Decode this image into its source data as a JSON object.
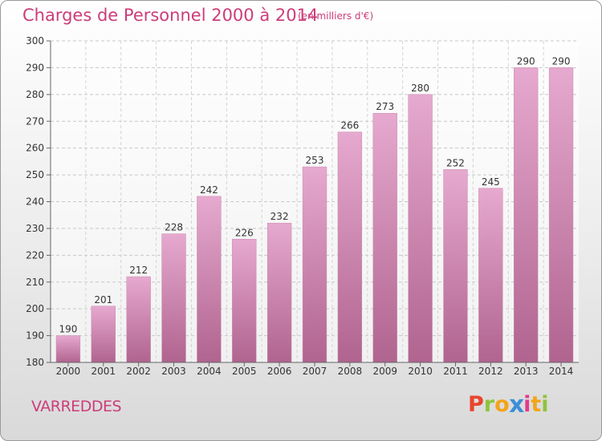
{
  "header": {
    "title": "Charges de Personnel 2000 à 2014",
    "subtitle": "(en milliers d'€)"
  },
  "footer": {
    "place": "VARREDDES",
    "logo_letters": [
      "P",
      "r",
      "o",
      "x",
      "i",
      "t",
      "i"
    ],
    "logo_colors": [
      "#e8452c",
      "#8fc33b",
      "#f2a51a",
      "#3b8fd6",
      "#e23b8a",
      "#f2a51a",
      "#8fc33b"
    ]
  },
  "colors": {
    "bar_top": "#e6a9cf",
    "bar_bottom": "#b0648f",
    "accent": "#cc3d7a"
  },
  "chart_data": {
    "type": "bar",
    "title": "Charges de Personnel 2000 à 2014",
    "subtitle": "(en milliers d'€)",
    "categories": [
      "2000",
      "2001",
      "2002",
      "2003",
      "2004",
      "2005",
      "2006",
      "2007",
      "2008",
      "2009",
      "2010",
      "2011",
      "2012",
      "2013",
      "2014"
    ],
    "values": [
      190,
      201,
      212,
      228,
      242,
      226,
      232,
      253,
      266,
      273,
      280,
      252,
      245,
      290,
      290
    ],
    "yticks": [
      180,
      190,
      200,
      210,
      220,
      230,
      240,
      250,
      260,
      270,
      280,
      290,
      300
    ],
    "ylim": [
      180,
      300
    ],
    "grid": true,
    "xlabel": "",
    "ylabel": ""
  }
}
